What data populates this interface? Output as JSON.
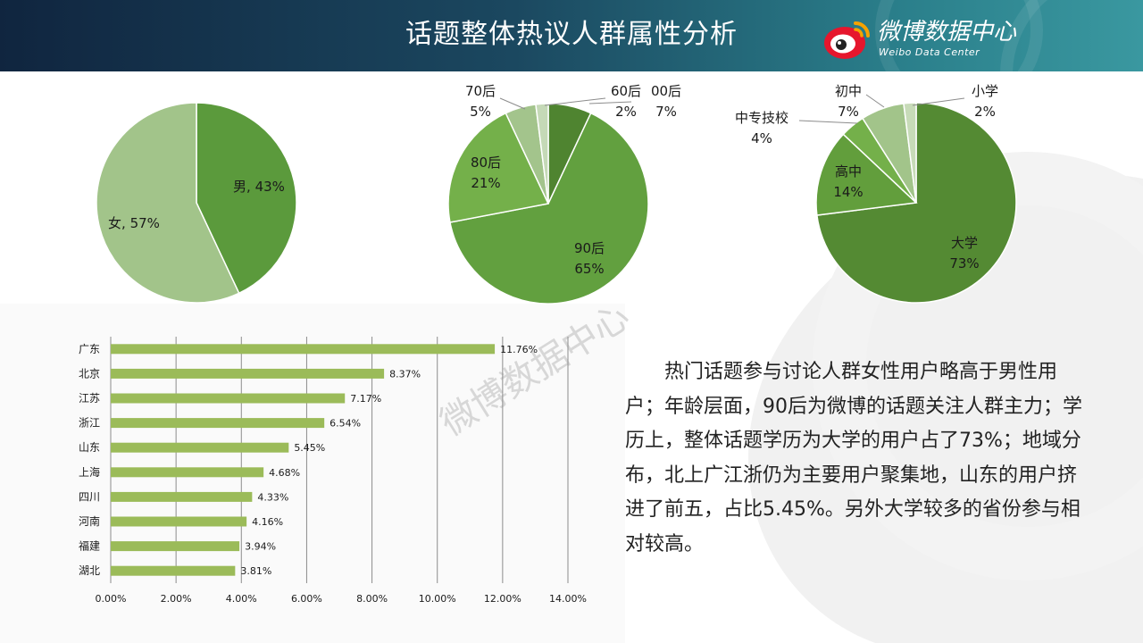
{
  "header": {
    "title": "话题整体热议人群属性分析",
    "brand_name": "微博数据中心",
    "brand_sub": "Weibo Data Center"
  },
  "watermark": "微博数据中心",
  "summary": "热门话题参与讨论人群女性用户略高于男性用户；年龄层面，90后为微博的话题关注人群主力；学历上，整体话题学历为大学的用户占了73%；地域分布，北上广江浙仍为主要用户聚集地，山东的用户挤进了前五，占比5.45%。另外大学较多的省份参与相对较高。",
  "chart_data": [
    {
      "type": "pie",
      "slices": [
        {
          "label": "男",
          "value": 43,
          "display": "男, 43%",
          "color": "#5b9a3c"
        },
        {
          "label": "女",
          "value": 57,
          "display": "女, 57%",
          "color": "#a2c48a"
        }
      ]
    },
    {
      "type": "pie",
      "slices": [
        {
          "label": "00后",
          "value": 7,
          "display": [
            "00后",
            "7%"
          ],
          "color": "#4f8430"
        },
        {
          "label": "90后",
          "value": 65,
          "display": [
            "90后",
            "65%"
          ],
          "color": "#62a03f"
        },
        {
          "label": "80后",
          "value": 21,
          "display": [
            "80后",
            "21%"
          ],
          "color": "#74b04a"
        },
        {
          "label": "70后",
          "value": 5,
          "display": [
            "70后",
            "5%"
          ],
          "color": "#a3c48c"
        },
        {
          "label": "60后",
          "value": 2,
          "display": [
            "60后",
            "2%"
          ],
          "color": "#c5d9b7"
        }
      ]
    },
    {
      "type": "pie",
      "slices": [
        {
          "label": "大学",
          "value": 73,
          "display": [
            "大学",
            "73%"
          ],
          "color": "#548a33"
        },
        {
          "label": "高中",
          "value": 14,
          "display": [
            "高中",
            "14%"
          ],
          "color": "#629e3c"
        },
        {
          "label": "中专技校",
          "value": 4,
          "display": [
            "中专技校",
            "4%"
          ],
          "color": "#74b04a"
        },
        {
          "label": "初中",
          "value": 7,
          "display": [
            "初中",
            "7%"
          ],
          "color": "#a2c48a"
        },
        {
          "label": "小学",
          "value": 2,
          "display": [
            "小学",
            "2%"
          ],
          "color": "#c7dbb8"
        }
      ]
    },
    {
      "type": "bar",
      "orientation": "horizontal",
      "categories": [
        "广东",
        "北京",
        "江苏",
        "浙江",
        "山东",
        "上海",
        "四川",
        "河南",
        "福建",
        "湖北"
      ],
      "values": [
        11.76,
        8.37,
        7.17,
        6.54,
        5.45,
        4.68,
        4.33,
        4.16,
        3.94,
        3.81
      ],
      "value_labels": [
        "11.76%",
        "8.37%",
        "7.17%",
        "6.54%",
        "5.45%",
        "4.68%",
        "4.33%",
        "4.16%",
        "3.94%",
        "3.81%"
      ],
      "xlim": [
        0,
        14
      ],
      "xticks": [
        "0.00%",
        "2.00%",
        "4.00%",
        "6.00%",
        "8.00%",
        "10.00%",
        "12.00%",
        "14.00%"
      ],
      "grid": true,
      "bar_color": "#9bbb59"
    }
  ]
}
